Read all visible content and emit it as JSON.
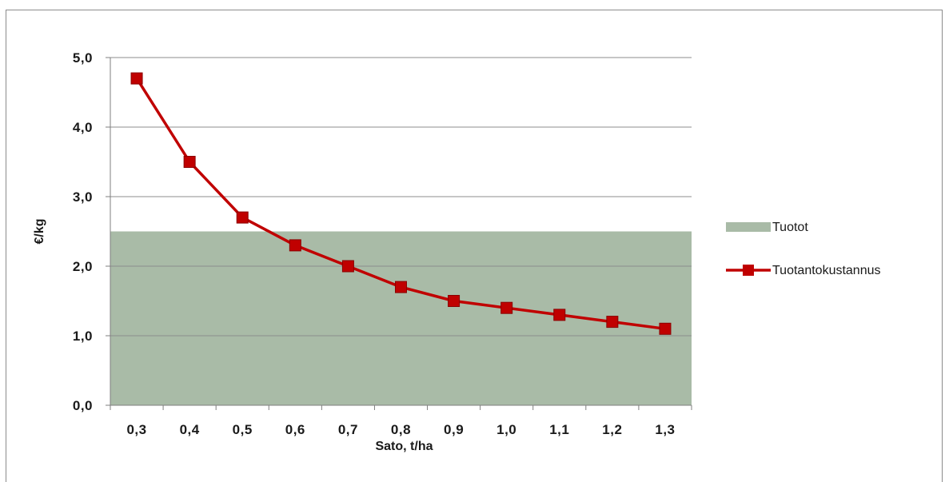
{
  "chart_data": {
    "type": "line",
    "xlabel": "Sato, t/ha",
    "ylabel": "€/kg",
    "categories": [
      "0,3",
      "0,4",
      "0,5",
      "0,6",
      "0,7",
      "0,8",
      "0,9",
      "1,0",
      "1,1",
      "1,2",
      "1,3"
    ],
    "ylim": [
      0,
      5
    ],
    "yticks": [
      0,
      1,
      2,
      3,
      4,
      5
    ],
    "ytick_labels": [
      "0,0",
      "1,0",
      "2,0",
      "3,0",
      "4,0",
      "5,0"
    ],
    "grid": true,
    "legend_position": "right",
    "series": [
      {
        "name": "Tuotot",
        "kind": "area",
        "color": "#a9bba7",
        "values": [
          2.5,
          2.5,
          2.5,
          2.5,
          2.5,
          2.5,
          2.5,
          2.5,
          2.5,
          2.5,
          2.5
        ]
      },
      {
        "name": "Tuotantokustannus",
        "kind": "line",
        "marker": "square",
        "color": "#c00000",
        "values": [
          4.7,
          3.5,
          2.7,
          2.3,
          2.0,
          1.7,
          1.5,
          1.4,
          1.3,
          1.2,
          1.1
        ]
      }
    ]
  }
}
